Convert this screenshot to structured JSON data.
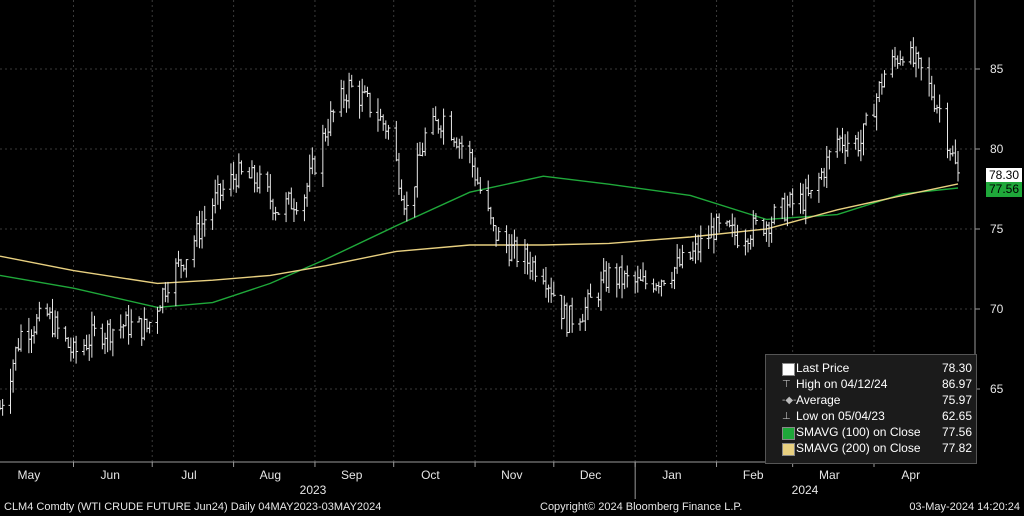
{
  "chart_data": {
    "type": "line",
    "ticker": "CLM4 Comdty (WTI CRUDE FUTURE  Jun24)  Daily 04MAY2023-03MAY2024",
    "ylim": [
      62,
      89
    ],
    "yticks": [
      65,
      70,
      75,
      80,
      85
    ],
    "month_labels": [
      "May",
      "Jun",
      "Jul",
      "Aug",
      "Sep",
      "Oct",
      "Nov",
      "Dec",
      "Jan",
      "Feb",
      "Mar",
      "Apr"
    ],
    "year_labels": [
      "2023",
      "2024"
    ],
    "series": [
      {
        "name": "Last Price",
        "color": "#ffffff",
        "style": "bar-ohlc",
        "x": [
          "2023-05-04",
          "2023-05-12",
          "2023-05-22",
          "2023-06-01",
          "2023-06-09",
          "2023-06-20",
          "2023-06-29",
          "2023-07-07",
          "2023-07-14",
          "2023-07-24",
          "2023-08-02",
          "2023-08-10",
          "2023-08-18",
          "2023-08-28",
          "2023-09-06",
          "2023-09-14",
          "2023-09-22",
          "2023-09-29",
          "2023-10-06",
          "2023-10-13",
          "2023-10-20",
          "2023-10-30",
          "2023-11-08",
          "2023-11-16",
          "2023-11-27",
          "2023-12-06",
          "2023-12-13",
          "2023-12-22",
          "2024-01-03",
          "2024-01-11",
          "2024-01-22",
          "2024-01-31",
          "2024-02-09",
          "2024-02-20",
          "2024-02-29",
          "2024-03-08",
          "2024-03-18",
          "2024-03-27",
          "2024-04-05",
          "2024-04-12",
          "2024-04-19",
          "2024-04-26",
          "2024-05-03"
        ],
        "values": [
          63.8,
          68.5,
          69.6,
          67.2,
          68.4,
          69.0,
          68.8,
          71.8,
          73.4,
          76.6,
          78.4,
          78.0,
          76.2,
          77.2,
          81.6,
          83.9,
          82.7,
          81.2,
          76.2,
          80.8,
          82.0,
          79.5,
          74.8,
          73.5,
          72.4,
          69.3,
          70.0,
          72.1,
          71.5,
          72.0,
          73.2,
          75.0,
          74.6,
          75.4,
          76.5,
          77.0,
          80.6,
          80.4,
          84.7,
          86.2,
          84.8,
          82.5,
          78.3
        ]
      },
      {
        "name": "SMAVG (100)  on Close",
        "color": "#1fa83a",
        "x": [
          "2023-05-04",
          "2023-06-01",
          "2023-07-03",
          "2023-07-24",
          "2023-08-15",
          "2023-09-05",
          "2023-10-02",
          "2023-10-30",
          "2023-11-27",
          "2023-12-22",
          "2024-01-22",
          "2024-02-20",
          "2024-03-18",
          "2024-04-12",
          "2024-05-03"
        ],
        "values": [
          72.1,
          71.3,
          70.1,
          70.4,
          71.6,
          73.1,
          75.2,
          77.3,
          78.3,
          77.8,
          77.1,
          75.6,
          75.9,
          77.2,
          77.56
        ]
      },
      {
        "name": "SMAVG (200)  on Close",
        "color": "#e8d080",
        "x": [
          "2023-05-04",
          "2023-06-01",
          "2023-07-03",
          "2023-07-24",
          "2023-08-15",
          "2023-09-05",
          "2023-10-02",
          "2023-10-30",
          "2023-11-27",
          "2023-12-22",
          "2024-01-22",
          "2024-02-20",
          "2024-03-18",
          "2024-04-12",
          "2024-05-03"
        ],
        "values": [
          73.3,
          72.4,
          71.6,
          71.8,
          72.1,
          72.7,
          73.6,
          74.0,
          74.0,
          74.1,
          74.5,
          75.0,
          76.2,
          77.1,
          77.82
        ]
      }
    ]
  },
  "legend": [
    {
      "label": "Last Price",
      "value": "78.30",
      "box_color": "#ffffff",
      "marker": "▭"
    },
    {
      "label": "High on 04/12/24",
      "value": "86.97",
      "box_color": "",
      "marker": "⊤"
    },
    {
      "label": "Average",
      "value": "75.97",
      "box_color": "",
      "marker": "-◆-"
    },
    {
      "label": "Low on 05/04/23",
      "value": "62.65",
      "box_color": "",
      "marker": "⊥"
    },
    {
      "label": "SMAVG (100)  on Close",
      "value": "77.56",
      "box_color": "#1fa83a",
      "marker": "▭"
    },
    {
      "label": "SMAVG (200)  on Close",
      "value": "77.82",
      "box_color": "#e8d080",
      "marker": "▭"
    }
  ],
  "price_tags": [
    {
      "value": "78.30",
      "bg": "#ffffff",
      "fg": "#000000"
    },
    {
      "value": "77.56",
      "bg": "#1fa83a",
      "fg": "#000000"
    }
  ],
  "footer": {
    "left": "CLM4 Comdty (WTI CRUDE FUTURE  Jun24)  Daily 04MAY2023-03MAY2024",
    "center": "Copyright© 2024 Bloomberg Finance L.P.",
    "right": "03-May-2024 14:20:24"
  }
}
